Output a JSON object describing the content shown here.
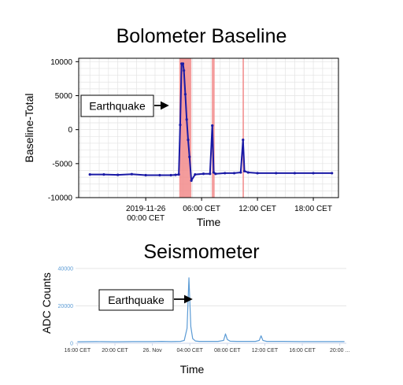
{
  "chart_data": [
    {
      "type": "line",
      "title": "Bolometer Baseline",
      "xlabel": "Time",
      "ylabel": "Baseline-Total",
      "x_axis": "time (hours since 2019-11-25 18:00 CET)",
      "xlim_hours": [
        -1.2,
        26.7
      ],
      "x_ticks": [
        {
          "h": 6,
          "line1": "2019-11-26",
          "line2": "00:00 CET"
        },
        {
          "h": 12,
          "line1": "06:00 CET",
          "line2": ""
        },
        {
          "h": 18,
          "line1": "12:00 CET",
          "line2": ""
        },
        {
          "h": 24,
          "line1": "18:00 CET",
          "line2": ""
        }
      ],
      "ylim": [
        -10000,
        10500
      ],
      "y_ticks": [
        {
          "v": 10000,
          "label": "10000"
        },
        {
          "v": 5000,
          "label": "5000"
        },
        {
          "v": 0,
          "label": "0"
        },
        {
          "v": -5000,
          "label": "-5000"
        },
        {
          "v": -10000,
          "label": "-10000"
        }
      ],
      "grid": true,
      "series_color": "#1a1aa6",
      "highlight_color": "#f28b8b",
      "highlight_bands_hours": [
        [
          9.6,
          10.9
        ],
        [
          13.1,
          13.4
        ],
        [
          16.4,
          16.55
        ]
      ],
      "series": [
        {
          "x": [
            0,
            1.5,
            3,
            4.5,
            6,
            7.5,
            8.7,
            9.2,
            9.55,
            9.7,
            9.85,
            10.0,
            10.1,
            10.25,
            10.4,
            10.55,
            10.7,
            10.9,
            11.3,
            12.2,
            12.9,
            13.15,
            13.3,
            13.5,
            14.5,
            15.5,
            16.2,
            16.45,
            16.6,
            17,
            18,
            20,
            22,
            24,
            26
          ],
          "y": [
            -6600,
            -6600,
            -6650,
            -6550,
            -6700,
            -6700,
            -6700,
            -6650,
            -6600,
            700,
            9700,
            9700,
            8700,
            5200,
            1500,
            -1500,
            -4000,
            -7500,
            -6600,
            -6500,
            -6500,
            600,
            -6300,
            -6500,
            -6400,
            -6400,
            -6300,
            -1500,
            -6100,
            -6300,
            -6400,
            -6400,
            -6400,
            -6400,
            -6400
          ]
        }
      ],
      "annotation": "Earthquake"
    },
    {
      "type": "line",
      "title": "Seismometer",
      "xlabel": "Time",
      "ylabel": "ADC Counts",
      "x_axis": "time (hours since 2019-11-25 16:00 CET)",
      "xlim_hours": [
        -0.2,
        28.7
      ],
      "x_ticks": [
        {
          "h": 0,
          "label": "16:00 CET"
        },
        {
          "h": 4,
          "label": "20:00 CET"
        },
        {
          "h": 8,
          "label": "26. Nov"
        },
        {
          "h": 12,
          "label": "04:00 CET"
        },
        {
          "h": 16,
          "label": "08:00 CET"
        },
        {
          "h": 20,
          "label": "12:00 CET"
        },
        {
          "h": 24,
          "label": "16:00 CET"
        },
        {
          "h": 28,
          "label": "20:00 ..."
        }
      ],
      "ylim": [
        0,
        40000
      ],
      "y_ticks": [
        {
          "v": 40000,
          "label": "40000"
        },
        {
          "v": 20000,
          "label": "20000"
        },
        {
          "v": 0,
          "label": "0"
        }
      ],
      "grid": true,
      "series_color": "#5b9bd5",
      "series": [
        {
          "x": [
            0,
            2,
            4,
            6,
            8,
            9,
            10,
            11,
            11.4,
            11.7,
            11.9,
            12.1,
            12.3,
            12.6,
            13,
            14,
            15,
            15.6,
            15.8,
            16.0,
            16.3,
            17,
            18,
            19,
            19.4,
            19.6,
            19.8,
            20.2,
            21,
            22,
            24,
            26,
            28,
            28.5
          ],
          "y": [
            800,
            900,
            800,
            900,
            900,
            1000,
            900,
            1000,
            1500,
            8000,
            35000,
            9000,
            2500,
            1200,
            1000,
            1000,
            1000,
            1500,
            5000,
            2000,
            1100,
            1000,
            1000,
            1000,
            1500,
            4000,
            1500,
            1000,
            1000,
            1000,
            900,
            900,
            900,
            900
          ]
        }
      ],
      "annotation": "Earthquake"
    }
  ]
}
